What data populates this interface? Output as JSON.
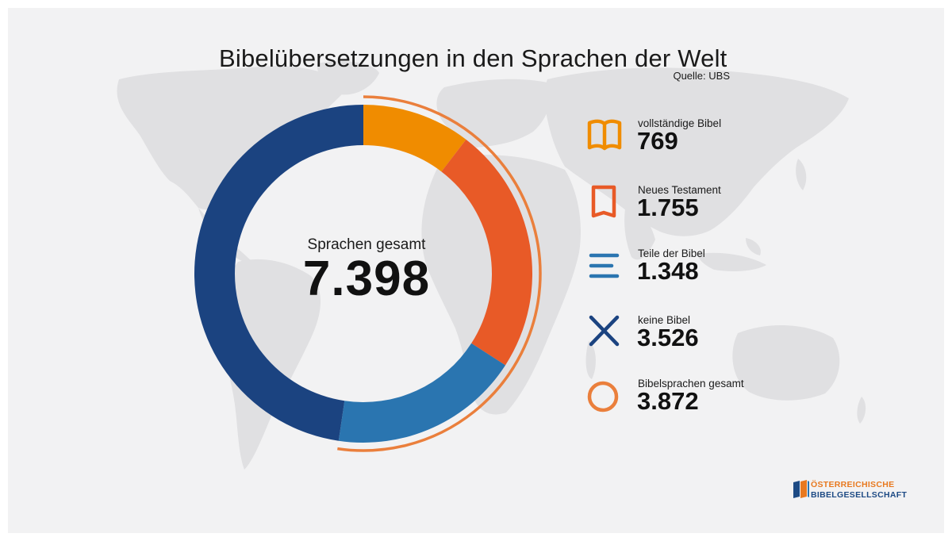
{
  "title": "Bibelübersetzungen in den Sprachen der Welt",
  "source": "Quelle: UBS",
  "center": {
    "label": "Sprachen gesamt",
    "value": "7.398"
  },
  "legend": [
    {
      "label": "vollständige Bibel",
      "value": "769",
      "icon": "open-book-icon",
      "color": "#f08c00"
    },
    {
      "label": "Neues Testament",
      "value": "1.755",
      "icon": "closed-book-icon",
      "color": "#e85a27"
    },
    {
      "label": "Teile der Bibel",
      "value": "1.348",
      "icon": "lines-icon",
      "color": "#2a75b0"
    },
    {
      "label": "keine Bibel",
      "value": "3.526",
      "icon": "x-icon",
      "color": "#1b4380"
    },
    {
      "label": "Bibelsprachen gesamt",
      "value": "3.872",
      "icon": "ring-icon",
      "color": "#ea7f3c"
    }
  ],
  "logo": {
    "line1": "ÖSTERREICHISCHE",
    "line2": "BIBELGESELLSCHAFT"
  },
  "chart_data": {
    "type": "pie",
    "categories": [
      "vollständige Bibel",
      "Neues Testament",
      "Teile der Bibel",
      "keine Bibel"
    ],
    "values": [
      769,
      1755,
      1348,
      3526
    ],
    "total": 7398,
    "colors": [
      "#f08c00",
      "#e85a27",
      "#2a75b0",
      "#1b4380"
    ],
    "outer_arc": {
      "label": "Bibelsprachen gesamt",
      "value": 3872,
      "color": "#ea7f3c"
    },
    "title": "Bibelübersetzungen in den Sprachen der Welt"
  }
}
